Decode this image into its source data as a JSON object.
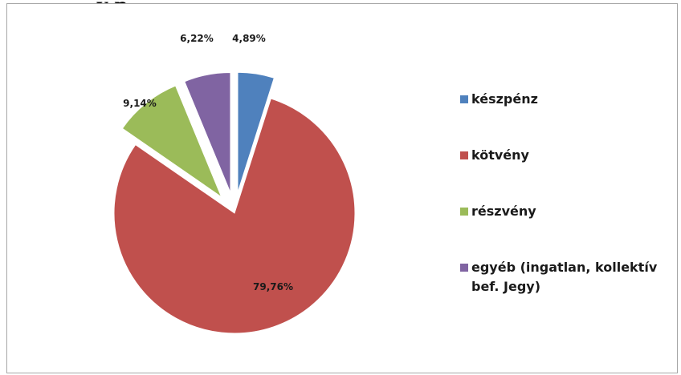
{
  "page": {
    "title": "y  p"
  },
  "chart_data": {
    "type": "pie",
    "title": "",
    "categories": [
      "készpénz",
      "kötvény",
      "részvény",
      "egyéb (ingatlan, kollektív bef. Jegy)"
    ],
    "values": [
      4.89,
      79.76,
      9.14,
      6.22
    ],
    "labels": [
      "4,89%",
      "79,76%",
      "9,14%",
      "6,22%"
    ],
    "colors": [
      "#4f81bd",
      "#c0504d",
      "#9bbb59",
      "#8064a2"
    ],
    "exploded": [
      true,
      false,
      true,
      true
    ],
    "legend_position": "right",
    "legend_lines": [
      [
        "készpénz"
      ],
      [
        "kötvény"
      ],
      [
        "részvény"
      ],
      [
        "egyéb (ingatlan, kollektív",
        "bef. Jegy)"
      ]
    ]
  }
}
